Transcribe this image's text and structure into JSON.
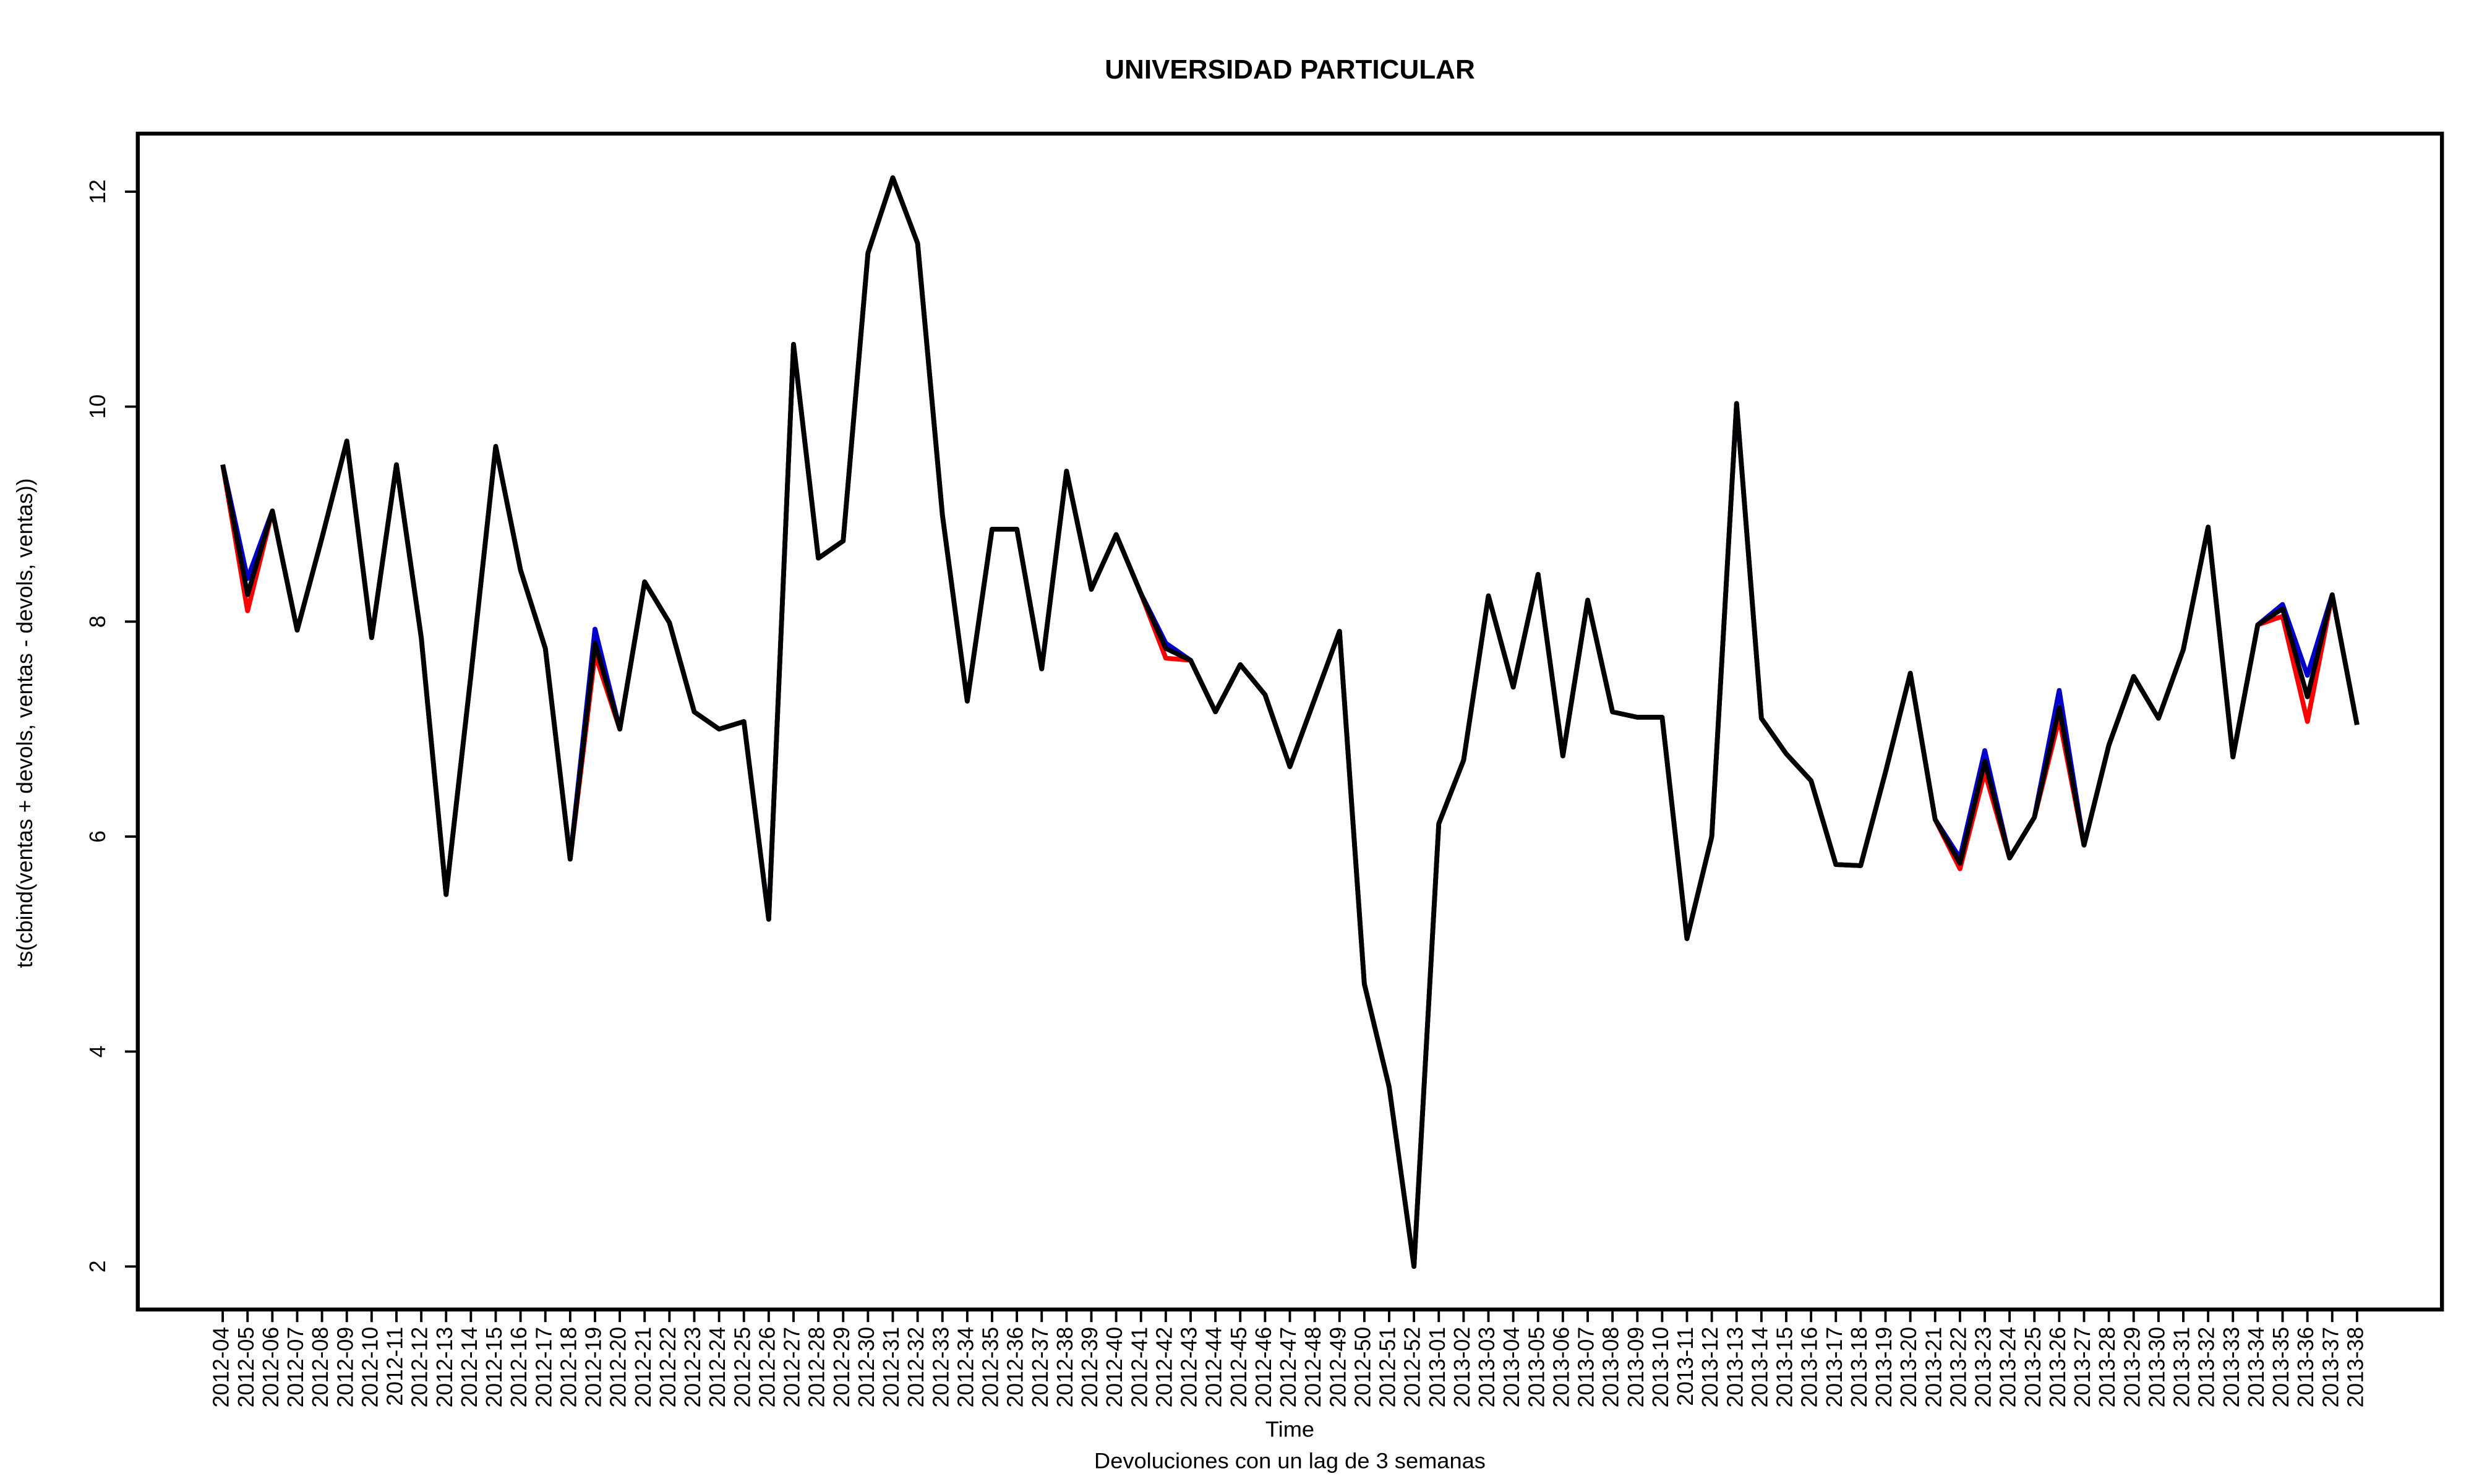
{
  "chart_data": {
    "type": "line",
    "title": "UNIVERSIDAD PARTICULAR",
    "subtitle": "Devoluciones con un lag de 3 semanas",
    "x_label": "Time",
    "y_label": "ts(cbind(ventas + devols, ventas - devols, ventas))",
    "categories": [
      "2012-04",
      "2012-05",
      "2012-06",
      "2012-07",
      "2012-08",
      "2012-09",
      "2012-10",
      "2012-11",
      "2012-12",
      "2012-13",
      "2012-14",
      "2012-15",
      "2012-16",
      "2012-17",
      "2012-18",
      "2012-19",
      "2012-20",
      "2012-21",
      "2012-22",
      "2012-23",
      "2012-24",
      "2012-25",
      "2012-26",
      "2012-27",
      "2012-28",
      "2012-29",
      "2012-30",
      "2012-31",
      "2012-32",
      "2012-33",
      "2012-34",
      "2012-35",
      "2012-36",
      "2012-37",
      "2012-38",
      "2012-39",
      "2012-40",
      "2012-41",
      "2012-42",
      "2012-43",
      "2012-44",
      "2012-45",
      "2012-46",
      "2012-47",
      "2012-48",
      "2012-49",
      "2012-50",
      "2012-51",
      "2012-52",
      "2013-01",
      "2013-02",
      "2013-03",
      "2013-04",
      "2013-05",
      "2013-06",
      "2013-07",
      "2013-08",
      "2013-09",
      "2013-10",
      "2013-11",
      "2013-12",
      "2013-13",
      "2013-14",
      "2013-15",
      "2013-16",
      "2013-17",
      "2013-18",
      "2013-19",
      "2013-20",
      "2013-21",
      "2013-22",
      "2013-23",
      "2013-24",
      "2013-25",
      "2013-26",
      "2013-27",
      "2013-28",
      "2013-29",
      "2013-30",
      "2013-31",
      "2013-32",
      "2013-33",
      "2013-34",
      "2013-35",
      "2013-36",
      "2013-37",
      "2013-38"
    ],
    "series": [
      {
        "color": "#ff0000",
        "values": [
          9.46,
          8.1,
          9.03,
          7.92,
          8.78,
          9.68,
          7.85,
          9.46,
          7.85,
          5.46,
          7.5,
          9.63,
          8.48,
          7.75,
          5.79,
          7.7,
          7.0,
          8.37,
          7.99,
          7.16,
          7.0,
          7.07,
          5.23,
          10.58,
          8.59,
          8.75,
          11.43,
          12.13,
          11.52,
          8.99,
          7.26,
          8.86,
          8.86,
          7.56,
          9.4,
          8.3,
          8.81,
          8.26,
          7.66,
          7.64,
          7.16,
          7.6,
          7.32,
          6.65,
          7.28,
          7.91,
          4.63,
          3.67,
          2.0,
          6.12,
          6.71,
          8.24,
          7.39,
          8.44,
          6.75,
          8.2,
          7.16,
          7.11,
          7.11,
          5.05,
          6.0,
          10.03,
          7.1,
          6.77,
          6.52,
          5.74,
          5.73,
          6.6,
          7.52,
          6.16,
          5.7,
          6.6,
          5.8,
          6.18,
          7.1,
          5.92,
          6.85,
          7.49,
          7.1,
          7.74,
          8.88,
          6.74,
          7.97,
          8.05,
          7.07,
          8.25,
          7.04
        ]
      },
      {
        "color": "#0000cc",
        "values": [
          9.46,
          8.4,
          9.03,
          7.92,
          8.78,
          9.68,
          7.85,
          9.46,
          7.85,
          5.46,
          7.5,
          9.63,
          8.48,
          7.75,
          5.79,
          7.93,
          7.0,
          8.37,
          7.99,
          7.16,
          7.0,
          7.07,
          5.23,
          10.58,
          8.59,
          8.75,
          11.43,
          12.13,
          11.52,
          8.99,
          7.26,
          8.86,
          8.86,
          7.56,
          9.4,
          8.3,
          8.81,
          8.26,
          7.8,
          7.64,
          7.16,
          7.6,
          7.32,
          6.65,
          7.28,
          7.91,
          4.63,
          3.67,
          2.0,
          6.12,
          6.71,
          8.24,
          7.39,
          8.44,
          6.75,
          8.2,
          7.16,
          7.11,
          7.11,
          5.05,
          6.0,
          10.03,
          7.1,
          6.77,
          6.52,
          5.74,
          5.73,
          6.6,
          7.52,
          6.16,
          5.8,
          6.8,
          5.8,
          6.18,
          7.36,
          5.92,
          6.85,
          7.49,
          7.1,
          7.74,
          8.88,
          6.74,
          7.97,
          8.16,
          7.5,
          8.25,
          7.04
        ]
      },
      {
        "color": "#000000",
        "values": [
          9.46,
          8.25,
          9.03,
          7.92,
          8.78,
          9.68,
          7.85,
          9.46,
          7.85,
          5.46,
          7.5,
          9.63,
          8.48,
          7.75,
          5.79,
          7.8,
          7.0,
          8.37,
          7.99,
          7.16,
          7.0,
          7.07,
          5.23,
          10.58,
          8.59,
          8.75,
          11.43,
          12.13,
          11.52,
          8.99,
          7.26,
          8.86,
          8.86,
          7.56,
          9.4,
          8.3,
          8.81,
          8.26,
          7.75,
          7.64,
          7.16,
          7.6,
          7.32,
          6.65,
          7.28,
          7.91,
          4.63,
          3.67,
          2.0,
          6.12,
          6.71,
          8.24,
          7.39,
          8.44,
          6.75,
          8.2,
          7.16,
          7.11,
          7.11,
          5.05,
          6.0,
          10.03,
          7.1,
          6.77,
          6.52,
          5.74,
          5.73,
          6.6,
          7.52,
          6.16,
          5.75,
          6.7,
          5.8,
          6.18,
          7.2,
          5.92,
          6.85,
          7.49,
          7.1,
          7.74,
          8.88,
          6.74,
          7.97,
          8.12,
          7.3,
          8.25,
          7.04
        ]
      }
    ],
    "ylim": [
      1.6,
      12.54
    ],
    "yticks": [
      2,
      4,
      6,
      8,
      10,
      12
    ]
  }
}
